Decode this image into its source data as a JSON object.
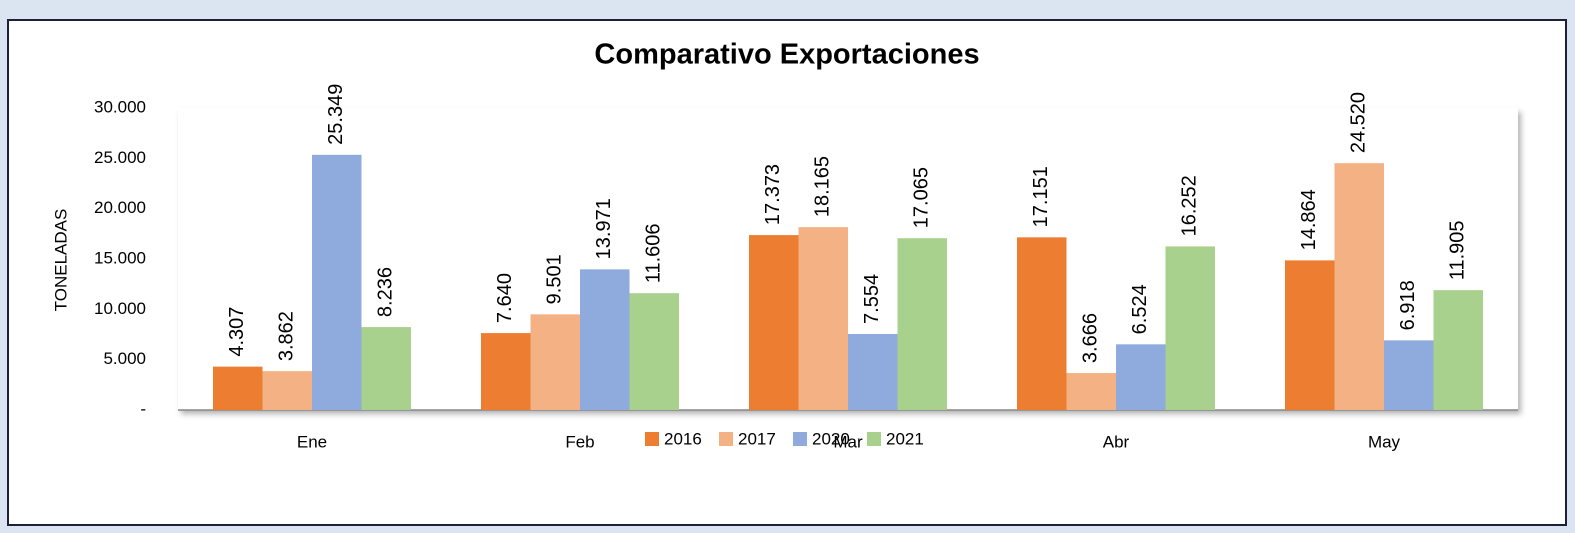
{
  "chart_data": {
    "type": "bar",
    "title": "Comparativo Exportaciones",
    "y_label": "TONELADAS",
    "categories": [
      "Ene",
      "Feb",
      "Mar",
      "Abr",
      "May"
    ],
    "series": [
      {
        "name": "2016",
        "color": "#ed7d31",
        "values": [
          4307,
          7640,
          17373,
          17151,
          14864
        ],
        "value_labels": [
          "4.307",
          "7.640",
          "17.373",
          "17.151",
          "14.864"
        ]
      },
      {
        "name": "2017",
        "color": "#f4b183",
        "values": [
          3862,
          9501,
          18165,
          3666,
          24520
        ],
        "value_labels": [
          "3.862",
          "9.501",
          "18.165",
          "3.666",
          "24.520"
        ]
      },
      {
        "name": "2020",
        "color": "#8faadc",
        "values": [
          25349,
          13971,
          7554,
          6524,
          6918
        ],
        "value_labels": [
          "25.349",
          "13.971",
          "7.554",
          "6.524",
          "6.918"
        ]
      },
      {
        "name": "2021",
        "color": "#a9d18e",
        "values": [
          8236,
          11606,
          17065,
          16252,
          11905
        ],
        "value_labels": [
          "8.236",
          "11.606",
          "17.065",
          "16.252",
          "11.905"
        ]
      }
    ],
    "ylim": [
      0,
      30000
    ],
    "yticks": [
      {
        "value": 0,
        "label": "-"
      },
      {
        "value": 5000,
        "label": "5.000"
      },
      {
        "value": 10000,
        "label": "10.000"
      },
      {
        "value": 15000,
        "label": "15.000"
      },
      {
        "value": 20000,
        "label": "20.000"
      },
      {
        "value": 25000,
        "label": "25.000"
      },
      {
        "value": 30000,
        "label": "30.000"
      }
    ],
    "legend": "bottom"
  }
}
